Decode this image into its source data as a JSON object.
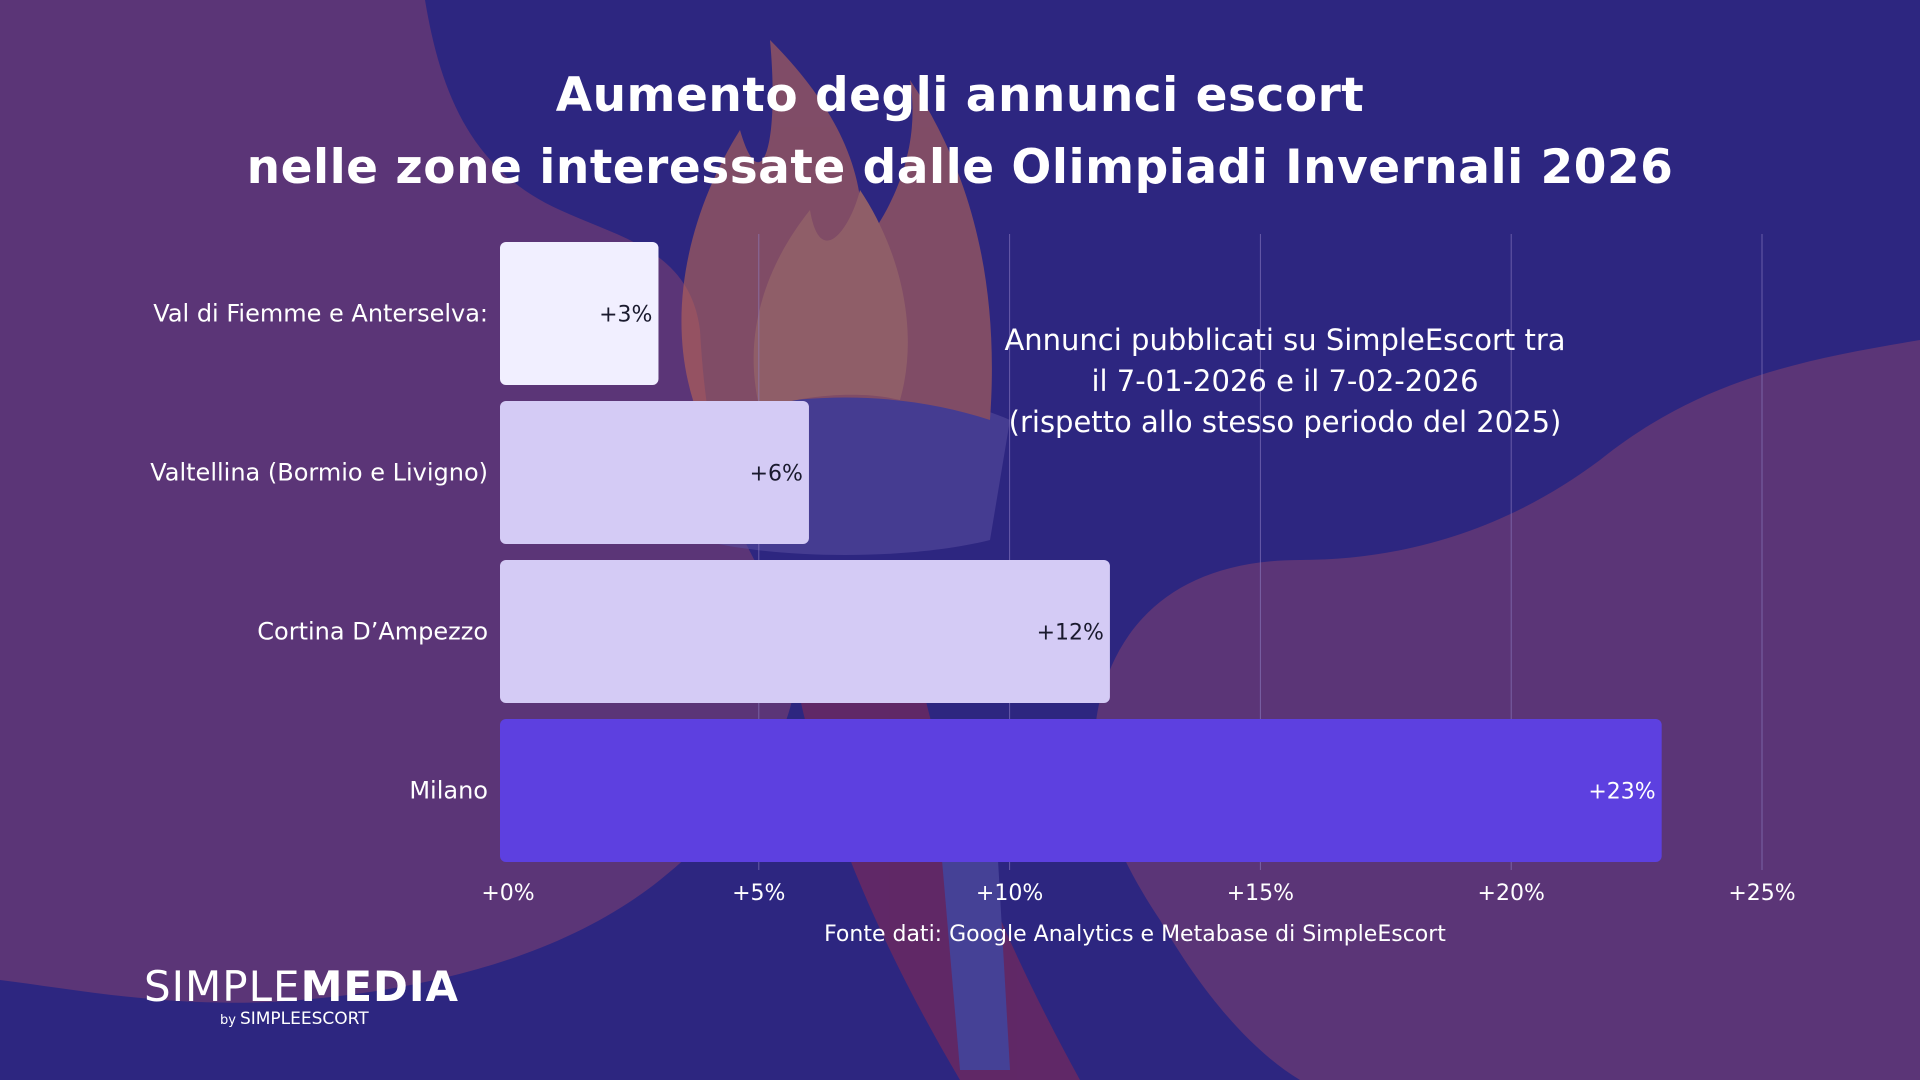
{
  "colors": {
    "background": "#2d2680",
    "blob": "#5b3577",
    "bar_light": "#f1efff",
    "bar_mid": "#d4cbf5",
    "bar_accent": "#5d40e0",
    "grid": "#8f80c4"
  },
  "icons": [
    "olympic-torch-illustration"
  ],
  "chart_data": {
    "type": "bar",
    "orientation": "horizontal",
    "title": "Aumento degli annunci escort nelle zone interessate dalle Olimpiadi Invernali 2026",
    "title_lines": [
      "Aumento degli annunci escort",
      "nelle zone interessate dalle Olimpiadi Invernali 2026"
    ],
    "categories": [
      "Val di Fiemme e Anterselva:",
      "Valtellina (Bormio e Livigno)",
      "Cortina D’Ampezzo",
      "Milano"
    ],
    "values": [
      3,
      6,
      12,
      23
    ],
    "data_labels": [
      "+3%",
      "+6%",
      "+12%",
      "+23%"
    ],
    "bar_colors": [
      "#f1efff",
      "#d4cbf5",
      "#d4cbf5",
      "#5d40e0"
    ],
    "label_colors": [
      "#1a1a2e",
      "#1a1a2e",
      "#1a1a2e",
      "#ffffff"
    ],
    "xlim": [
      0,
      25
    ],
    "x_ticks": [
      0,
      5,
      10,
      15,
      20,
      25
    ],
    "x_tick_labels": [
      "+0%",
      "+5%",
      "+10%",
      "+15%",
      "+20%",
      "+25%"
    ],
    "grid": "vertical",
    "xlabel": "",
    "ylabel": "",
    "annotation_lines": [
      "Annunci pubblicati su SimpleEscort tra",
      "il 7-01-2026 e il 7-02-2026",
      "(rispetto allo stesso periodo del 2025)"
    ],
    "source": "Fonte dati: Google Analytics e Metabase di SimpleEscort"
  },
  "logo": {
    "thin": "SIMPLE",
    "bold": "MEDIA",
    "by": "by",
    "sub": "SIMPLEESCORT"
  }
}
